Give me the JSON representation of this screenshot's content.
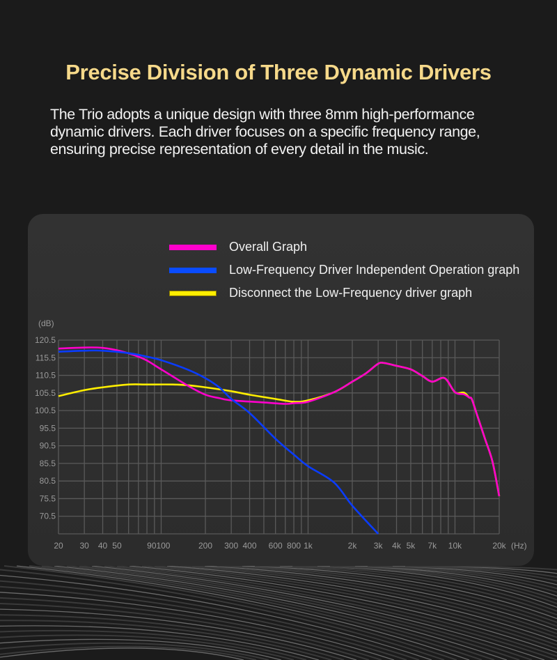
{
  "header": {
    "title": "Precise Division of Three Dynamic Drivers",
    "description_lines": [
      "The Trio adopts a unique design with three 8mm high-performance",
      "dynamic drivers. Each driver focuses on a specific frequency range,",
      "ensuring precise representation of every detail in the music."
    ]
  },
  "colors": {
    "title": "#f6d98a",
    "overall": "#ff00cc",
    "low_freq": "#0a3cff",
    "disconnect": "#ffee00",
    "grid": "#5a5a5a"
  },
  "chart_data": {
    "type": "line",
    "ylabel": "(dB)",
    "xlabel": "(Hz)",
    "x_scale": "log",
    "xlim": [
      20,
      20000
    ],
    "ylim": [
      65.5,
      120.5
    ],
    "grid": true,
    "legend_placement": "top-center",
    "y_ticks": [
      "120.5",
      "115.5",
      "110.5",
      "105.5",
      "100.5",
      "95.5",
      "90.5",
      "85.5",
      "80.5",
      "75.5",
      "70.5"
    ],
    "x_ticks": [
      {
        "value": 20,
        "label": "20"
      },
      {
        "value": 30,
        "label": "30"
      },
      {
        "value": 40,
        "label": "40"
      },
      {
        "value": 50,
        "label": "50"
      },
      {
        "value": 90,
        "label": "90"
      },
      {
        "value": 100,
        "label": "100"
      },
      {
        "value": 200,
        "label": "200"
      },
      {
        "value": 300,
        "label": "300"
      },
      {
        "value": 400,
        "label": "400"
      },
      {
        "value": 600,
        "label": "600"
      },
      {
        "value": 800,
        "label": "800"
      },
      {
        "value": 1000,
        "label": "1k"
      },
      {
        "value": 2000,
        "label": "2k"
      },
      {
        "value": 3000,
        "label": "3k"
      },
      {
        "value": 4000,
        "label": "4k"
      },
      {
        "value": 5000,
        "label": "5k"
      },
      {
        "value": 7000,
        "label": "7k"
      },
      {
        "value": 10000,
        "label": "10k"
      },
      {
        "value": 20000,
        "label": "20k"
      }
    ],
    "x_gridlines": [
      20,
      30,
      40,
      50,
      60,
      70,
      80,
      90,
      100,
      200,
      300,
      400,
      500,
      600,
      700,
      800,
      900,
      1000,
      2000,
      3000,
      4000,
      5000,
      6000,
      7000,
      8000,
      9000,
      10000,
      13500,
      20000
    ],
    "series": [
      {
        "name": "Disconnect the Low-Frequency driver graph",
        "color": "#ffee00",
        "x": [
          20,
          30,
          40,
          60,
          80,
          120,
          150,
          200,
          300,
          400,
          600,
          800,
          1000,
          1500,
          2000,
          2500,
          3000,
          3300,
          4000,
          5000,
          6000,
          7000,
          8500,
          10000,
          11500,
          12500,
          13000,
          14000,
          16000,
          18000,
          20000
        ],
        "y": [
          104.6,
          106.3,
          107.1,
          107.9,
          107.9,
          107.9,
          107.7,
          107.1,
          106.0,
          105.0,
          103.8,
          103.0,
          103.4,
          105.7,
          108.7,
          111.2,
          113.8,
          114.0,
          113.2,
          112.2,
          110.3,
          108.7,
          109.7,
          105.7,
          105.6,
          104.2,
          103.8,
          99.8,
          92.5,
          86.0,
          76.2
        ]
      },
      {
        "name": "Overall Graph",
        "color": "#ff00cc",
        "x": [
          20,
          40,
          70,
          100,
          150,
          200,
          250,
          300,
          500,
          700,
          800,
          1000,
          1500,
          2000,
          2500,
          3000,
          3300,
          4000,
          5000,
          6000,
          7000,
          8500,
          10000,
          11500,
          12500,
          13000,
          14000,
          16000,
          18000,
          20000
        ],
        "y": [
          118.1,
          118.3,
          115.8,
          112.2,
          107.7,
          105.0,
          104.0,
          103.4,
          102.8,
          102.4,
          102.6,
          103.0,
          105.7,
          108.7,
          111.2,
          113.8,
          114.0,
          113.2,
          112.2,
          110.3,
          108.7,
          109.7,
          105.7,
          105.1,
          104.2,
          103.8,
          99.8,
          92.5,
          86.0,
          76.2
        ]
      },
      {
        "name": "Low-Frequency Driver Independent Operation graph",
        "color": "#0a3cff",
        "x": [
          20,
          30,
          40,
          60,
          80,
          100,
          150,
          200,
          250,
          300,
          400,
          600,
          800,
          1000,
          1500,
          2000,
          3000
        ],
        "y": [
          117.2,
          117.5,
          117.5,
          116.8,
          115.8,
          114.8,
          112.2,
          109.7,
          107.0,
          103.8,
          99.8,
          92.5,
          88.0,
          84.7,
          80.1,
          73.5,
          65.5
        ]
      }
    ]
  },
  "legend": [
    {
      "label": "Overall Graph",
      "color": "#ff00cc"
    },
    {
      "label": "Low-Frequency Driver Independent Operation graph",
      "color": "#0a3cff"
    },
    {
      "label": "Disconnect the Low-Frequency driver graph",
      "color": "#ffee00"
    }
  ]
}
